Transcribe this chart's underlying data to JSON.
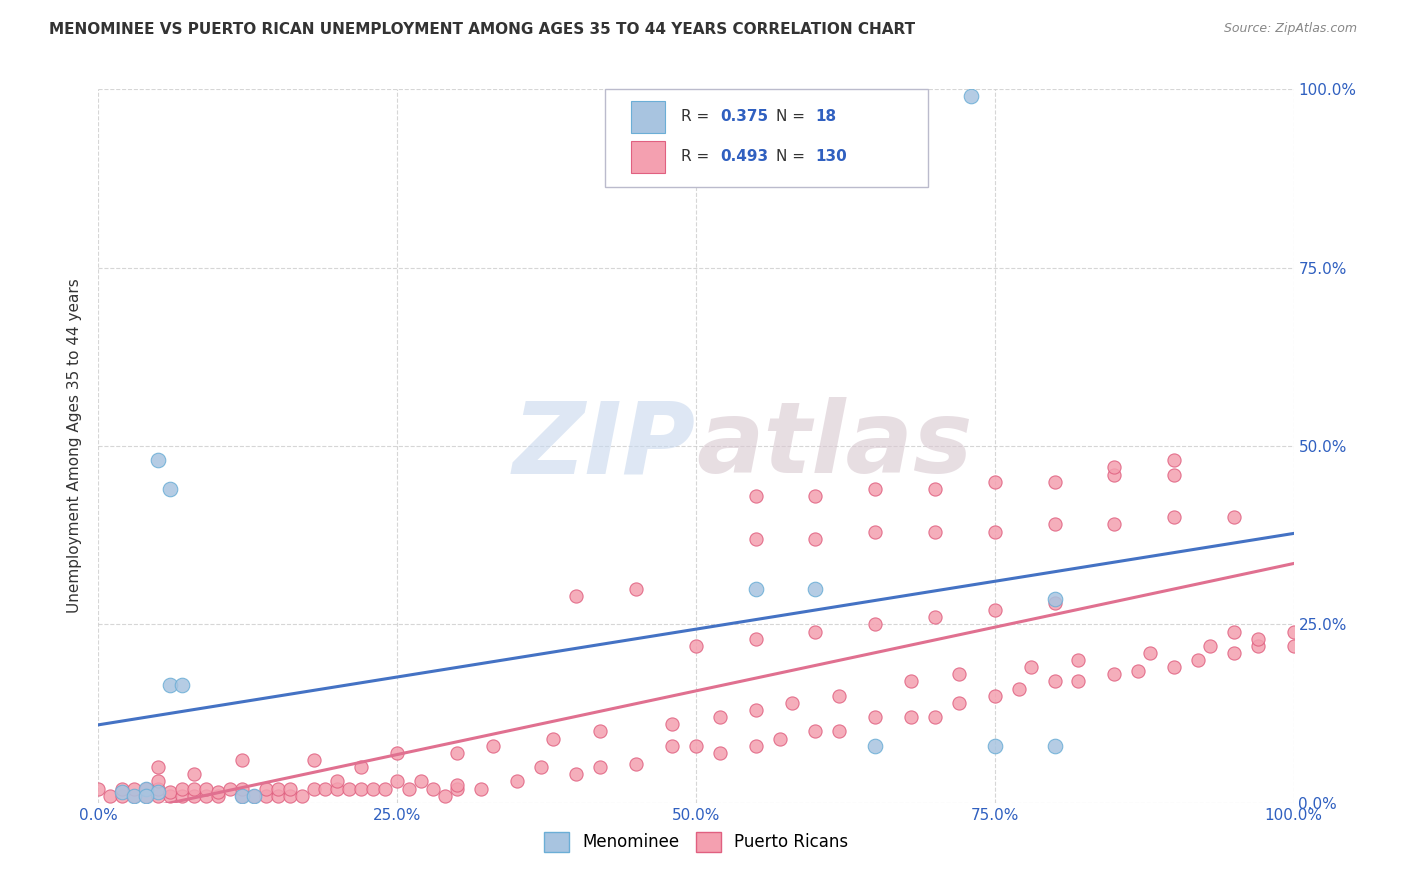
{
  "title": "MENOMINEE VS PUERTO RICAN UNEMPLOYMENT AMONG AGES 35 TO 44 YEARS CORRELATION CHART",
  "source": "Source: ZipAtlas.com",
  "ylabel": "Unemployment Among Ages 35 to 44 years",
  "xlim": [
    0,
    1.0
  ],
  "ylim": [
    0,
    1.0
  ],
  "xtick_labels": [
    "0.0%",
    "25.0%",
    "50.0%",
    "75.0%",
    "100.0%"
  ],
  "xtick_vals": [
    0,
    0.25,
    0.5,
    0.75,
    1.0
  ],
  "ytick_labels_right": [
    "0.0%",
    "25.0%",
    "50.0%",
    "75.0%",
    "100.0%"
  ],
  "ytick_vals": [
    0,
    0.25,
    0.5,
    0.75,
    1.0
  ],
  "menominee_color": "#a8c4e0",
  "menominee_edge_color": "#6baed6",
  "puerto_rican_color": "#f4a0b0",
  "puerto_rican_edge_color": "#e06080",
  "line_blue": "#4472c4",
  "line_pink": "#e07090",
  "menominee_R": 0.375,
  "menominee_N": 18,
  "puerto_rican_R": 0.493,
  "puerto_rican_N": 130,
  "menominee_scatter_x": [
    0.02,
    0.03,
    0.04,
    0.05,
    0.05,
    0.06,
    0.12,
    0.55,
    0.6,
    0.65,
    0.73,
    0.75,
    0.8,
    0.04,
    0.06,
    0.07,
    0.13,
    0.8
  ],
  "menominee_scatter_y": [
    0.015,
    0.01,
    0.02,
    0.48,
    0.015,
    0.44,
    0.01,
    0.3,
    0.3,
    0.08,
    0.99,
    0.08,
    0.285,
    0.01,
    0.165,
    0.165,
    0.01,
    0.08
  ],
  "puerto_rican_scatter_x": [
    0.0,
    0.01,
    0.02,
    0.02,
    0.03,
    0.03,
    0.04,
    0.04,
    0.05,
    0.05,
    0.05,
    0.06,
    0.06,
    0.07,
    0.07,
    0.08,
    0.08,
    0.09,
    0.09,
    0.1,
    0.1,
    0.11,
    0.12,
    0.12,
    0.13,
    0.14,
    0.14,
    0.15,
    0.15,
    0.16,
    0.16,
    0.17,
    0.18,
    0.19,
    0.2,
    0.2,
    0.21,
    0.22,
    0.23,
    0.24,
    0.25,
    0.26,
    0.27,
    0.28,
    0.29,
    0.3,
    0.3,
    0.32,
    0.35,
    0.37,
    0.4,
    0.42,
    0.45,
    0.48,
    0.5,
    0.52,
    0.55,
    0.57,
    0.6,
    0.62,
    0.65,
    0.68,
    0.7,
    0.72,
    0.75,
    0.77,
    0.8,
    0.82,
    0.85,
    0.87,
    0.9,
    0.92,
    0.95,
    0.97,
    1.0,
    0.05,
    0.08,
    0.12,
    0.18,
    0.22,
    0.25,
    0.3,
    0.33,
    0.38,
    0.42,
    0.48,
    0.52,
    0.55,
    0.58,
    0.62,
    0.68,
    0.72,
    0.78,
    0.82,
    0.88,
    0.93,
    0.97,
    0.55,
    0.6,
    0.65,
    0.7,
    0.75,
    0.8,
    0.85,
    0.9,
    0.55,
    0.6,
    0.65,
    0.7,
    0.75,
    0.8,
    0.85,
    0.9,
    0.95,
    1.0,
    0.4,
    0.45,
    0.5,
    0.55,
    0.6,
    0.65,
    0.7,
    0.75,
    0.8,
    0.85,
    0.9,
    0.95,
    1.0
  ],
  "puerto_rican_scatter_y": [
    0.02,
    0.01,
    0.01,
    0.02,
    0.01,
    0.02,
    0.01,
    0.02,
    0.01,
    0.02,
    0.03,
    0.01,
    0.015,
    0.01,
    0.02,
    0.01,
    0.02,
    0.01,
    0.02,
    0.01,
    0.015,
    0.02,
    0.01,
    0.02,
    0.01,
    0.01,
    0.02,
    0.01,
    0.02,
    0.01,
    0.02,
    0.01,
    0.02,
    0.02,
    0.02,
    0.03,
    0.02,
    0.02,
    0.02,
    0.02,
    0.03,
    0.02,
    0.03,
    0.02,
    0.01,
    0.02,
    0.025,
    0.02,
    0.03,
    0.05,
    0.04,
    0.05,
    0.055,
    0.08,
    0.08,
    0.07,
    0.08,
    0.09,
    0.1,
    0.1,
    0.12,
    0.12,
    0.12,
    0.14,
    0.15,
    0.16,
    0.17,
    0.17,
    0.18,
    0.185,
    0.19,
    0.2,
    0.21,
    0.22,
    0.22,
    0.05,
    0.04,
    0.06,
    0.06,
    0.05,
    0.07,
    0.07,
    0.08,
    0.09,
    0.1,
    0.11,
    0.12,
    0.13,
    0.14,
    0.15,
    0.17,
    0.18,
    0.19,
    0.2,
    0.21,
    0.22,
    0.23,
    0.43,
    0.43,
    0.44,
    0.44,
    0.45,
    0.45,
    0.46,
    0.46,
    0.37,
    0.37,
    0.38,
    0.38,
    0.38,
    0.39,
    0.39,
    0.4,
    0.4,
    0.24,
    0.29,
    0.3,
    0.22,
    0.23,
    0.24,
    0.25,
    0.26,
    0.27,
    0.28,
    0.47,
    0.48,
    0.24
  ],
  "watermark_zip": "ZIP",
  "watermark_atlas": "atlas",
  "background_color": "#ffffff",
  "grid_color": "#cccccc"
}
